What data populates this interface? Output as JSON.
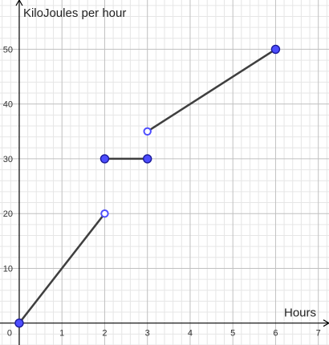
{
  "chart_data": {
    "type": "line",
    "title": "",
    "xlabel": "Hours",
    "ylabel": "KiloJoules per hour",
    "xlim": [
      -0.45,
      7.25
    ],
    "ylim": [
      -4,
      59
    ],
    "x_ticks": [
      0,
      1,
      2,
      3,
      4,
      5,
      6,
      7
    ],
    "y_ticks": [
      10,
      20,
      30,
      40,
      50
    ],
    "x_tick_labels": [
      "0",
      "1",
      "2",
      "3",
      "4",
      "5",
      "6",
      "7"
    ],
    "y_tick_labels": [
      "10",
      "20",
      "30",
      "40",
      "50"
    ],
    "grid": true,
    "segments": [
      {
        "points": [
          [
            0,
            0
          ],
          [
            2,
            20
          ]
        ],
        "endpoints": [
          "closed",
          "open"
        ]
      },
      {
        "points": [
          [
            2,
            30
          ],
          [
            3,
            30
          ]
        ],
        "endpoints": [
          "closed",
          "closed"
        ]
      },
      {
        "points": [
          [
            3,
            35
          ],
          [
            6,
            50
          ]
        ],
        "endpoints": [
          "open",
          "closed"
        ]
      }
    ],
    "colors": {
      "line": "#3f3f3f",
      "point_fill": "#4d4dff",
      "point_stroke": "#1a1a99",
      "open_point_stroke": "#4d4dff",
      "major_grid": "#c0c0c0",
      "minor_grid": "#e6e6e6",
      "axis": "#000000"
    }
  }
}
